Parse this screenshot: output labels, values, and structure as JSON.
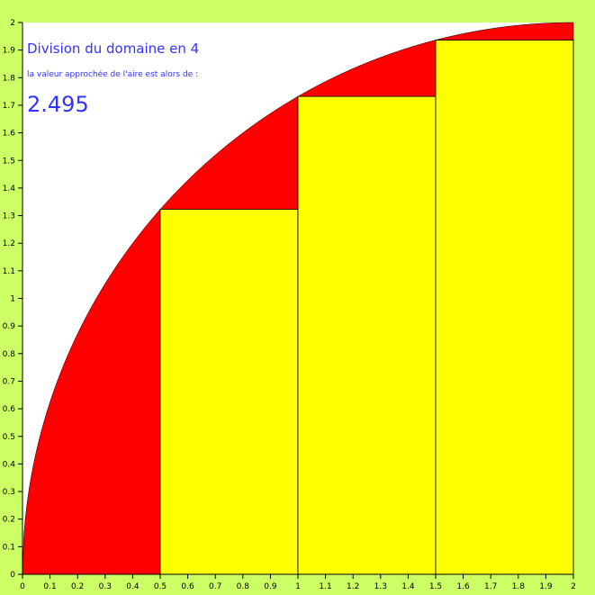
{
  "chart_data": {
    "type": "area",
    "title": "Division du domaine en 4",
    "subtitle": "la valeur approchée de l'aire est alors de :",
    "result": "2.495",
    "function": "sqrt(4 - (x-2)^2)",
    "xlim": [
      0,
      2
    ],
    "ylim": [
      0,
      2
    ],
    "x_ticks": [
      "0",
      "0.1",
      "0.2",
      "0.3",
      "0.4",
      "0.5",
      "0.6",
      "0.7",
      "0.8",
      "0.9",
      "1",
      "1.1",
      "1.2",
      "1.3",
      "1.4",
      "1.5",
      "1.6",
      "1.7",
      "1.8",
      "1.9",
      "2"
    ],
    "y_ticks": [
      "0",
      "0.1",
      "0.2",
      "0.3",
      "0.4",
      "0.5",
      "0.6",
      "0.7",
      "0.8",
      "0.9",
      "1",
      "1.1",
      "1.2",
      "1.3",
      "1.4",
      "1.5",
      "1.6",
      "1.7",
      "1.8",
      "1.9",
      "2"
    ],
    "rectangles": [
      {
        "x0": 0,
        "x1": 0.5,
        "height": 0
      },
      {
        "x0": 0.5,
        "x1": 1,
        "height": 1.323
      },
      {
        "x0": 1,
        "x1": 1.5,
        "height": 1.732
      },
      {
        "x0": 1.5,
        "x1": 2,
        "height": 1.936
      }
    ],
    "grid": false,
    "colors": {
      "background": "#ccff66",
      "plot_background": "#ffffff",
      "area_under_curve": "#ff0000",
      "rectangles": "#ffff00",
      "text": "#3333ff"
    }
  }
}
